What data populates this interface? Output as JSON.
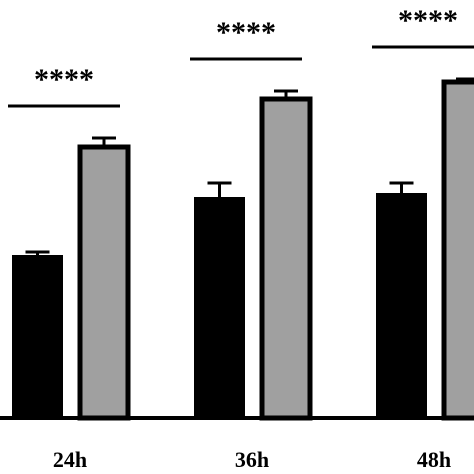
{
  "chart_data": {
    "type": "bar",
    "categories": [
      "24h",
      "36h",
      "48h"
    ],
    "series": [
      {
        "color": "#000000",
        "values": [
          163,
          221,
          225
        ],
        "errors": [
          3,
          14,
          10
        ]
      },
      {
        "color": "#a0a0a0",
        "values": [
          271,
          319,
          336
        ],
        "errors": [
          9,
          8,
          3
        ]
      }
    ],
    "annotations": [
      "****",
      "****",
      "****"
    ],
    "ylim": [
      0,
      420
    ]
  }
}
